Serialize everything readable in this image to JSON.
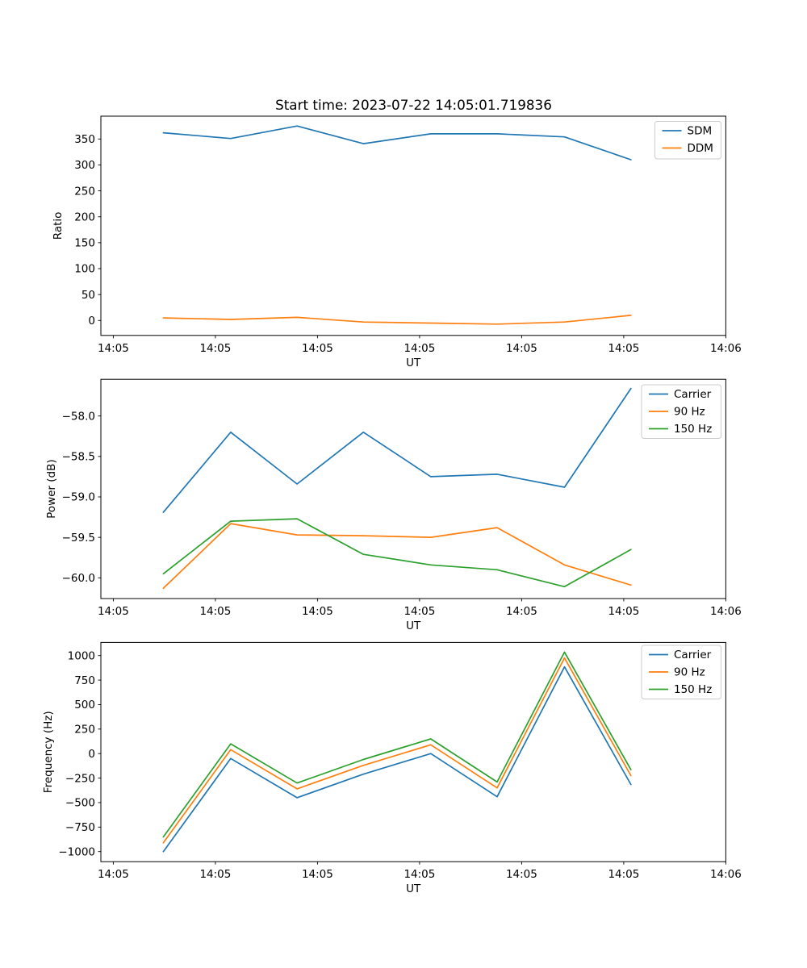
{
  "title": "Start time: 2023-07-22 14:05:01.719836",
  "xlabel": "UT",
  "x_tick_labels": [
    "14:05",
    "14:05",
    "14:05",
    "14:05",
    "14:05",
    "14:05",
    "14:06"
  ],
  "palette": {
    "blue": "#1f77b4",
    "orange": "#ff7f0e",
    "green": "#2ca02c"
  },
  "chart_data": [
    {
      "type": "line",
      "name": "ratio",
      "title": "",
      "xlabel": "UT",
      "ylabel": "Ratio",
      "x_seconds": [
        4.9,
        11.5,
        18.0,
        24.5,
        31.1,
        37.6,
        44.2,
        50.7
      ],
      "x_tick_seconds": [
        0,
        10,
        20,
        30,
        40,
        50,
        60
      ],
      "ylim": [
        -28.8,
        394.0
      ],
      "ytick_values": [
        0,
        50,
        100,
        150,
        200,
        250,
        300,
        350
      ],
      "ytick_labels": [
        "0",
        "50",
        "100",
        "150",
        "200",
        "250",
        "300",
        "350"
      ],
      "grid": false,
      "legend_position": "upper right",
      "series": [
        {
          "name": "SDM",
          "color": "#1f77b4",
          "values": [
            362,
            351,
            375,
            341,
            360,
            360,
            354,
            310
          ]
        },
        {
          "name": "DDM",
          "color": "#ff7f0e",
          "values": [
            5,
            2,
            6,
            -3,
            -5,
            -7,
            -3,
            10
          ]
        }
      ]
    },
    {
      "type": "line",
      "name": "power",
      "title": "",
      "xlabel": "UT",
      "ylabel": "Power (dB)",
      "x_seconds": [
        4.9,
        11.5,
        18.0,
        24.5,
        31.1,
        37.6,
        44.2,
        50.7
      ],
      "x_tick_seconds": [
        0,
        10,
        20,
        30,
        40,
        50,
        60
      ],
      "ylim": [
        -60.26,
        -57.55
      ],
      "ytick_values": [
        -58.0,
        -58.5,
        -59.0,
        -59.5,
        -60.0
      ],
      "ytick_labels": [
        "−58.0",
        "−58.5",
        "−59.0",
        "−59.5",
        "−60.0"
      ],
      "grid": false,
      "legend_position": "upper right",
      "series": [
        {
          "name": "Carrier",
          "color": "#1f77b4",
          "values": [
            -59.19,
            -58.2,
            -58.84,
            -58.2,
            -58.75,
            -58.72,
            -58.88,
            -57.66
          ]
        },
        {
          "name": "90 Hz",
          "color": "#ff7f0e",
          "values": [
            -60.13,
            -59.33,
            -59.47,
            -59.48,
            -59.5,
            -59.38,
            -59.84,
            -60.09
          ]
        },
        {
          "name": "150 Hz",
          "color": "#2ca02c",
          "values": [
            -59.95,
            -59.3,
            -59.27,
            -59.71,
            -59.84,
            -59.9,
            -60.11,
            -59.65
          ]
        }
      ]
    },
    {
      "type": "line",
      "name": "frequency",
      "title": "",
      "xlabel": "UT",
      "ylabel": "Frequency (Hz)",
      "x_seconds": [
        4.9,
        11.5,
        18.0,
        24.5,
        31.1,
        37.6,
        44.2,
        50.7
      ],
      "x_tick_seconds": [
        0,
        10,
        20,
        30,
        40,
        50,
        60
      ],
      "ylim": [
        -1103,
        1134
      ],
      "ytick_values": [
        1000,
        750,
        500,
        250,
        0,
        -250,
        -500,
        -750,
        -1000
      ],
      "ytick_labels": [
        "1000",
        "750",
        "500",
        "250",
        "0",
        "−250",
        "−500",
        "−750",
        "−1000"
      ],
      "grid": false,
      "legend_position": "upper right",
      "series": [
        {
          "name": "Carrier",
          "color": "#1f77b4",
          "values": [
            -1000,
            -50,
            -450,
            -210,
            0,
            -440,
            885,
            -315
          ]
        },
        {
          "name": "90 Hz",
          "color": "#ff7f0e",
          "values": [
            -910,
            40,
            -360,
            -120,
            90,
            -350,
            975,
            -225
          ]
        },
        {
          "name": "150 Hz",
          "color": "#2ca02c",
          "values": [
            -850,
            100,
            -300,
            -60,
            150,
            -290,
            1035,
            -165
          ]
        }
      ]
    }
  ]
}
